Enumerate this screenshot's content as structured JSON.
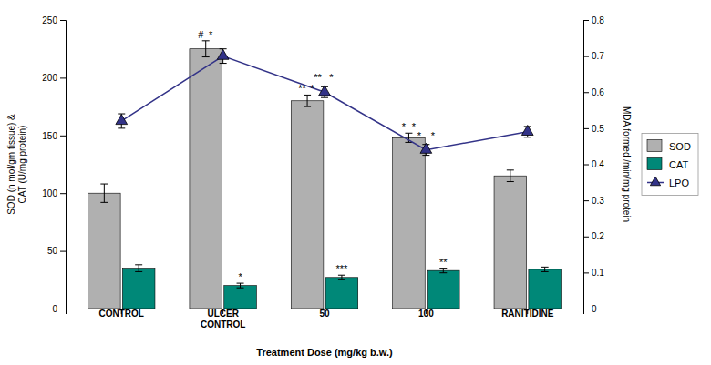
{
  "chart_data": {
    "type": "bar",
    "categories": [
      "CONTROL",
      "ULCER\nCONTROL",
      "50",
      "100",
      "RANITIDINE"
    ],
    "xlabel": "Treatment Dose (mg/kg b.w.)",
    "ylabel": "SOD (n mol/gm tissue) &\nCAT (U/mg protein)",
    "y2label": "MDA formed /min/mg protein",
    "ylim": [
      0,
      250
    ],
    "yticks": [
      0,
      50,
      100,
      150,
      200,
      250
    ],
    "y2lim": [
      0,
      0.8
    ],
    "y2ticks": [
      0,
      0.1,
      0.2,
      0.3,
      0.4,
      0.5,
      0.6,
      0.7,
      0.8
    ],
    "legend": "right",
    "series": [
      {
        "name": "SOD",
        "type": "bar",
        "color": "#b0b0b0",
        "values": [
          100,
          225,
          180,
          148,
          115
        ],
        "errors": [
          8,
          7,
          5,
          4,
          5
        ],
        "annotations": [
          [],
          [
            "#",
            "*"
          ],
          [
            "**",
            "*"
          ],
          [
            "*",
            "*"
          ],
          []
        ]
      },
      {
        "name": "CAT",
        "type": "bar",
        "color": "#008878",
        "values": [
          35,
          20,
          27,
          33,
          34
        ],
        "errors": [
          3,
          2,
          2,
          2,
          2
        ],
        "annotations": [
          [],
          [
            "*"
          ],
          [
            "***"
          ],
          [
            "**"
          ],
          []
        ]
      },
      {
        "name": "LPO",
        "type": "line",
        "axis": "y2",
        "color": "#333388",
        "marker": "triangle",
        "values": [
          0.52,
          0.7,
          0.6,
          0.44,
          0.49
        ],
        "errors": [
          0.02,
          0.02,
          0.015,
          0.015,
          0.015
        ],
        "annotations": [
          [],
          [],
          [
            "**",
            "*"
          ],
          [
            "*",
            "*"
          ],
          []
        ]
      }
    ]
  }
}
